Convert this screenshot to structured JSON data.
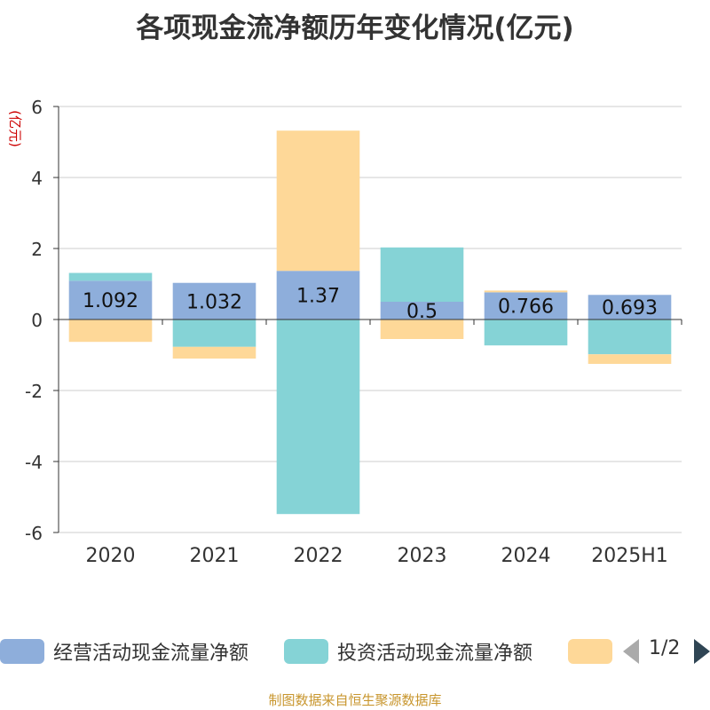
{
  "chart_data": {
    "type": "bar",
    "stacked": true,
    "title": "各项现金流净额历年变化情况(亿元)",
    "ylabel": "(亿元)",
    "ylim": [
      -6,
      6
    ],
    "yticks": [
      6,
      4,
      2,
      0,
      -2,
      -4,
      -6
    ],
    "grid": true,
    "categories": [
      "2020",
      "2021",
      "2022",
      "2023",
      "2024",
      "2025H1"
    ],
    "series": [
      {
        "name": "经营活动现金流量净额",
        "color": "#8eaedb",
        "values": [
          1.092,
          1.032,
          1.37,
          0.5,
          0.766,
          0.693
        ]
      },
      {
        "name": "投资活动现金流量净额",
        "color": "#85d3d6",
        "values": [
          0.22,
          -0.77,
          -5.48,
          1.53,
          -0.73,
          -0.98
        ]
      },
      {
        "name": "",
        "color": "#fed898",
        "values": [
          -0.63,
          -0.33,
          3.95,
          -0.55,
          0.05,
          -0.27
        ]
      }
    ],
    "data_labels": [
      "1.092",
      "1.032",
      "1.37",
      "0.5",
      "0.766",
      "0.693"
    ],
    "legend": {
      "placement": "bottom",
      "page": "1/2"
    }
  },
  "source_note": "制图数据来自恒生聚源数据库"
}
